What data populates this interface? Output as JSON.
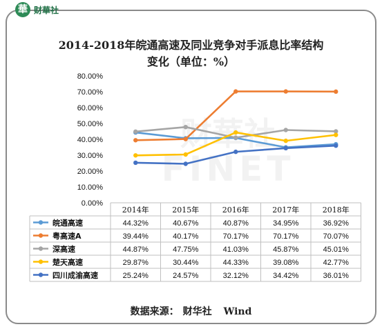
{
  "logo": {
    "mark": "華",
    "name": "财華社"
  },
  "title_line1": "2014-2018年皖通高速及同业竞争对手派息比率结构",
  "title_line2": "变化（单位：%）",
  "source": {
    "label": "数据来源：",
    "org1": "财华社",
    "org2": "Wind"
  },
  "watermark": {
    "cn": "财華社",
    "en": "FINET"
  },
  "chart_data": {
    "type": "line",
    "title": "2014-2018年皖通高速及同业竞争对手派息比率结构变化（单位：%）",
    "categories": [
      "2014年",
      "2015年",
      "2016年",
      "2017年",
      "2018年"
    ],
    "ylim": [
      0,
      80
    ],
    "yticks": [
      "0.00%",
      "10.00%",
      "20.00%",
      "30.00%",
      "40.00%",
      "50.00%",
      "60.00%",
      "70.00%",
      "80.00%"
    ],
    "grid": false,
    "legend": "table-below",
    "series": [
      {
        "name": "皖通高速",
        "color": "#5b9bd5",
        "values": [
          44.32,
          40.67,
          40.87,
          34.95,
          36.92
        ],
        "labels": [
          "44.32%",
          "40.67%",
          "40.87%",
          "34.95%",
          "36.92%"
        ]
      },
      {
        "name": "粤高速A",
        "color": "#ed7d31",
        "values": [
          39.44,
          40.17,
          70.17,
          70.17,
          70.07
        ],
        "labels": [
          "39.44%",
          "40.17%",
          "70.17%",
          "70.17%",
          "70.07%"
        ]
      },
      {
        "name": "深高速",
        "color": "#a5a5a5",
        "values": [
          44.87,
          47.75,
          41.03,
          45.87,
          45.01
        ],
        "labels": [
          "44.87%",
          "47.75%",
          "41.03%",
          "45.87%",
          "45.01%"
        ]
      },
      {
        "name": "楚天高速",
        "color": "#ffc000",
        "values": [
          29.87,
          30.44,
          44.33,
          39.08,
          42.77
        ],
        "labels": [
          "29.87%",
          "30.44%",
          "44.33%",
          "39.08%",
          "42.77%"
        ]
      },
      {
        "name": "四川成渝高速",
        "color": "#4472c4",
        "values": [
          25.24,
          24.57,
          32.12,
          34.42,
          36.01
        ],
        "labels": [
          "25.24%",
          "24.57%",
          "32.12%",
          "34.42%",
          "36.01%"
        ]
      }
    ]
  }
}
